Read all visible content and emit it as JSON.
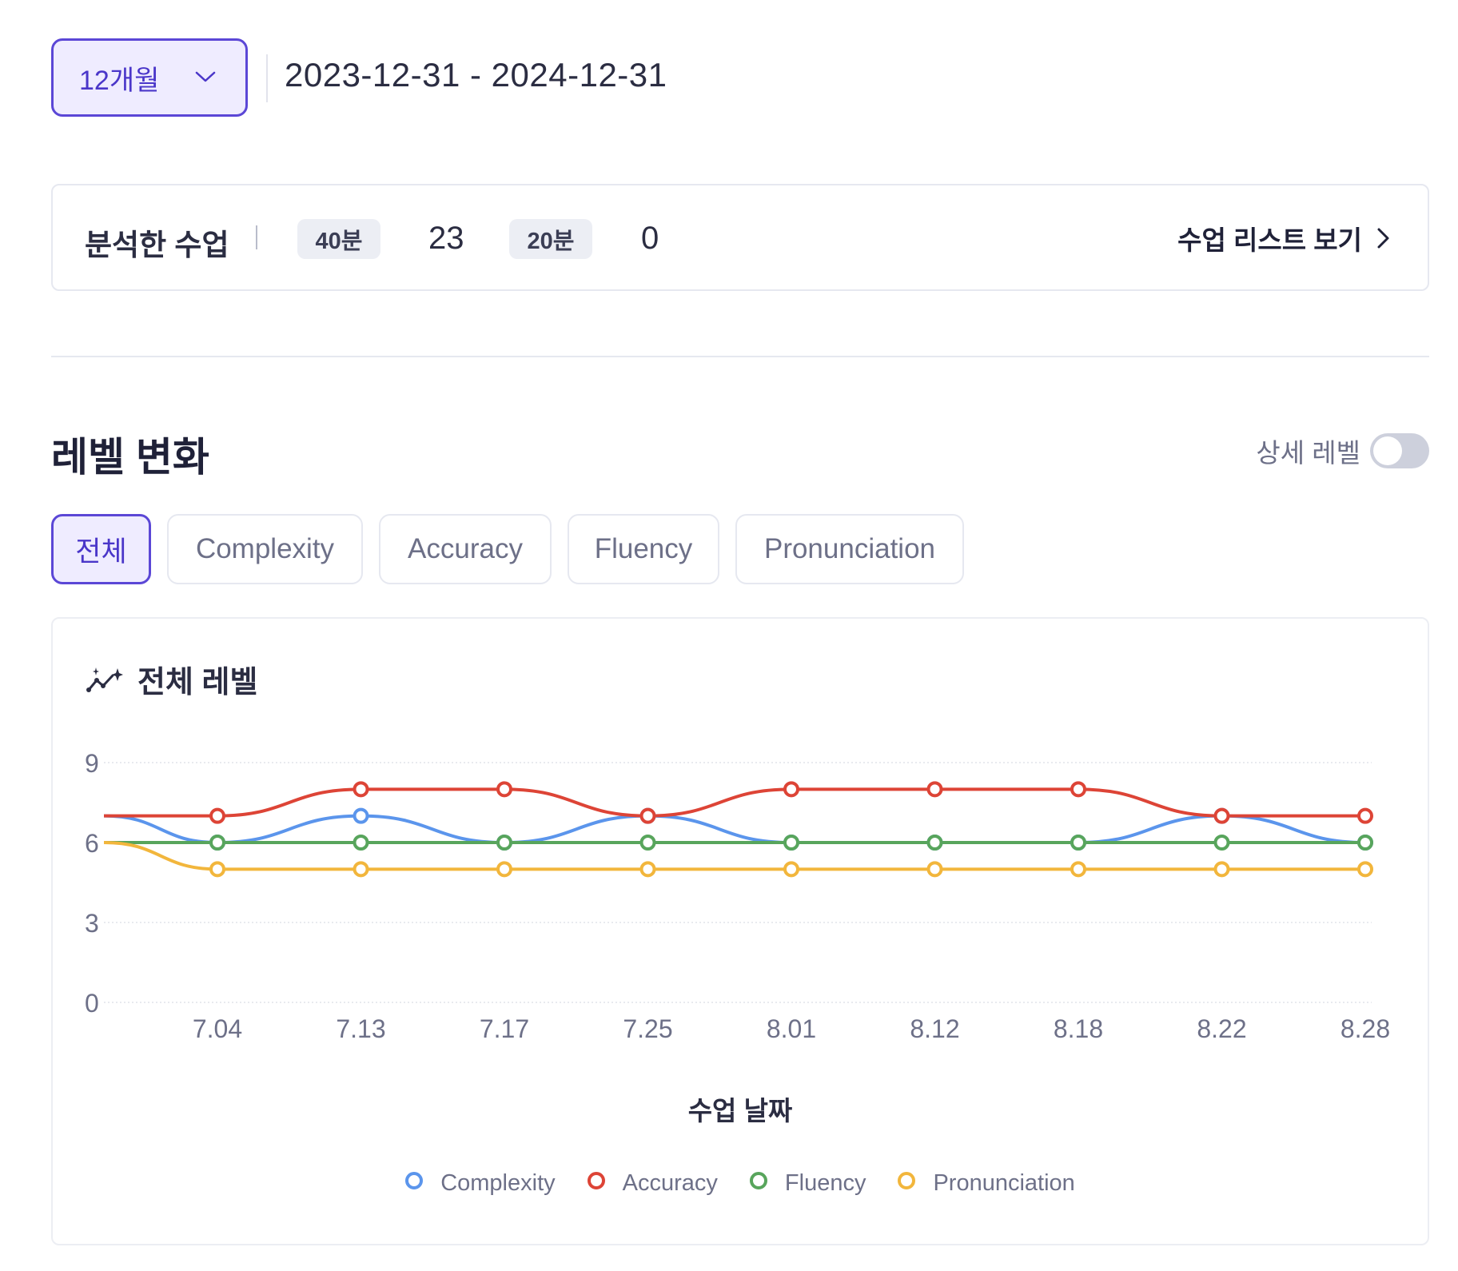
{
  "period": {
    "selected": "12개월",
    "range": "2023-12-31 - 2024-12-31"
  },
  "summary": {
    "title": "분석한 수업",
    "chip_a": "40분",
    "count_a": "23",
    "chip_b": "20분",
    "count_b": "0",
    "list_link": "수업 리스트 보기"
  },
  "section": {
    "title": "레벨 변화",
    "toggle_label": "상세 레벨"
  },
  "tabs": [
    {
      "label": "전체"
    },
    {
      "label": "Complexity"
    },
    {
      "label": "Accuracy"
    },
    {
      "label": "Fluency"
    },
    {
      "label": "Pronunciation"
    }
  ],
  "chart_card": {
    "title": "전체 레벨"
  },
  "colors": {
    "accent": "#5b47d6",
    "complexity": "#5b95ec",
    "accuracy": "#dd4436",
    "fluency": "#58a55c",
    "pronunciation": "#f2b63c"
  },
  "chart_data": {
    "type": "line",
    "categories": [
      "7.04",
      "7.13",
      "7.17",
      "7.25",
      "8.01",
      "8.12",
      "8.18",
      "8.22",
      "8.28"
    ],
    "lead_in": {
      "Complexity": 7,
      "Accuracy": 7,
      "Fluency": 6,
      "Pronunciation": 6
    },
    "series": [
      {
        "name": "Complexity",
        "color": "#5b95ec",
        "values": [
          6,
          7,
          6,
          7,
          6,
          6,
          6,
          7,
          6
        ]
      },
      {
        "name": "Accuracy",
        "color": "#dd4436",
        "values": [
          7,
          8,
          8,
          7,
          8,
          8,
          8,
          7,
          7
        ]
      },
      {
        "name": "Fluency",
        "color": "#58a55c",
        "values": [
          6,
          6,
          6,
          6,
          6,
          6,
          6,
          6,
          6
        ]
      },
      {
        "name": "Pronunciation",
        "color": "#f2b63c",
        "values": [
          5,
          5,
          5,
          5,
          5,
          5,
          5,
          5,
          5
        ]
      }
    ],
    "yticks": [
      0,
      3,
      6,
      9
    ],
    "ylim": [
      0,
      9
    ],
    "xlabel": "수업 날짜",
    "ylabel": "",
    "legend": "bottom",
    "grid": true
  }
}
